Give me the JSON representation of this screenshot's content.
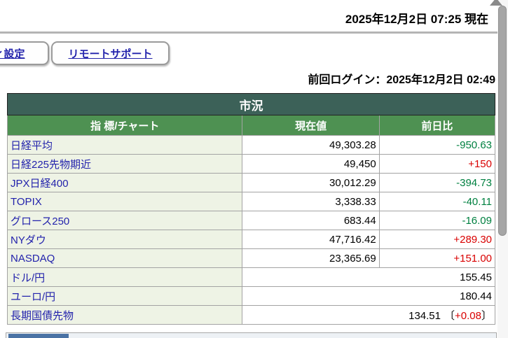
{
  "header": {
    "current_datetime": "2025年12月2日 07:25 現在",
    "last_login": "前回ログイン：2025年12月2日 02:49"
  },
  "toolbar": {
    "settings_button_label": "ィ設定",
    "remote_support_button_label": "リモートサポート"
  },
  "market_table": {
    "title": "市況",
    "columns": [
      "指 標/チャート",
      "現在値",
      "前日比"
    ],
    "rows": [
      {
        "name": "日経平均",
        "value": "49,303.28",
        "change": "-950.63"
      },
      {
        "name": "日経225先物期近",
        "value": "49,450",
        "change": "+150"
      },
      {
        "name": "JPX日経400",
        "value": "30,012.29",
        "change": "-394.73"
      },
      {
        "name": "TOPIX",
        "value": "3,338.33",
        "change": "-40.11"
      },
      {
        "name": "グロース250",
        "value": "683.44",
        "change": "-16.09"
      },
      {
        "name": "NYダウ",
        "value": "47,716.42",
        "change": "+289.30"
      },
      {
        "name": "NASDAQ",
        "value": "23,365.69",
        "change": "+151.00"
      },
      {
        "name": "ドル/円",
        "value": "155.45",
        "change": ""
      },
      {
        "name": "ユーロ/円",
        "value": "180.44",
        "change": ""
      },
      {
        "name": "長期国債先物",
        "value": "134.51",
        "change": "+0.08",
        "bracket_open": "〔",
        "bracket_close": "〕"
      }
    ]
  },
  "colors": {
    "table_title_bg": "#3c6158",
    "table_header_bg": "#4e9152",
    "row_label_bg": "#eef3e5",
    "link_text": "#2323ac",
    "positive_change": "#d90000",
    "negative_change": "#008040",
    "hscroll_thumb": "#4a72a4",
    "vscroll_thumb": "#a6a6a6"
  }
}
